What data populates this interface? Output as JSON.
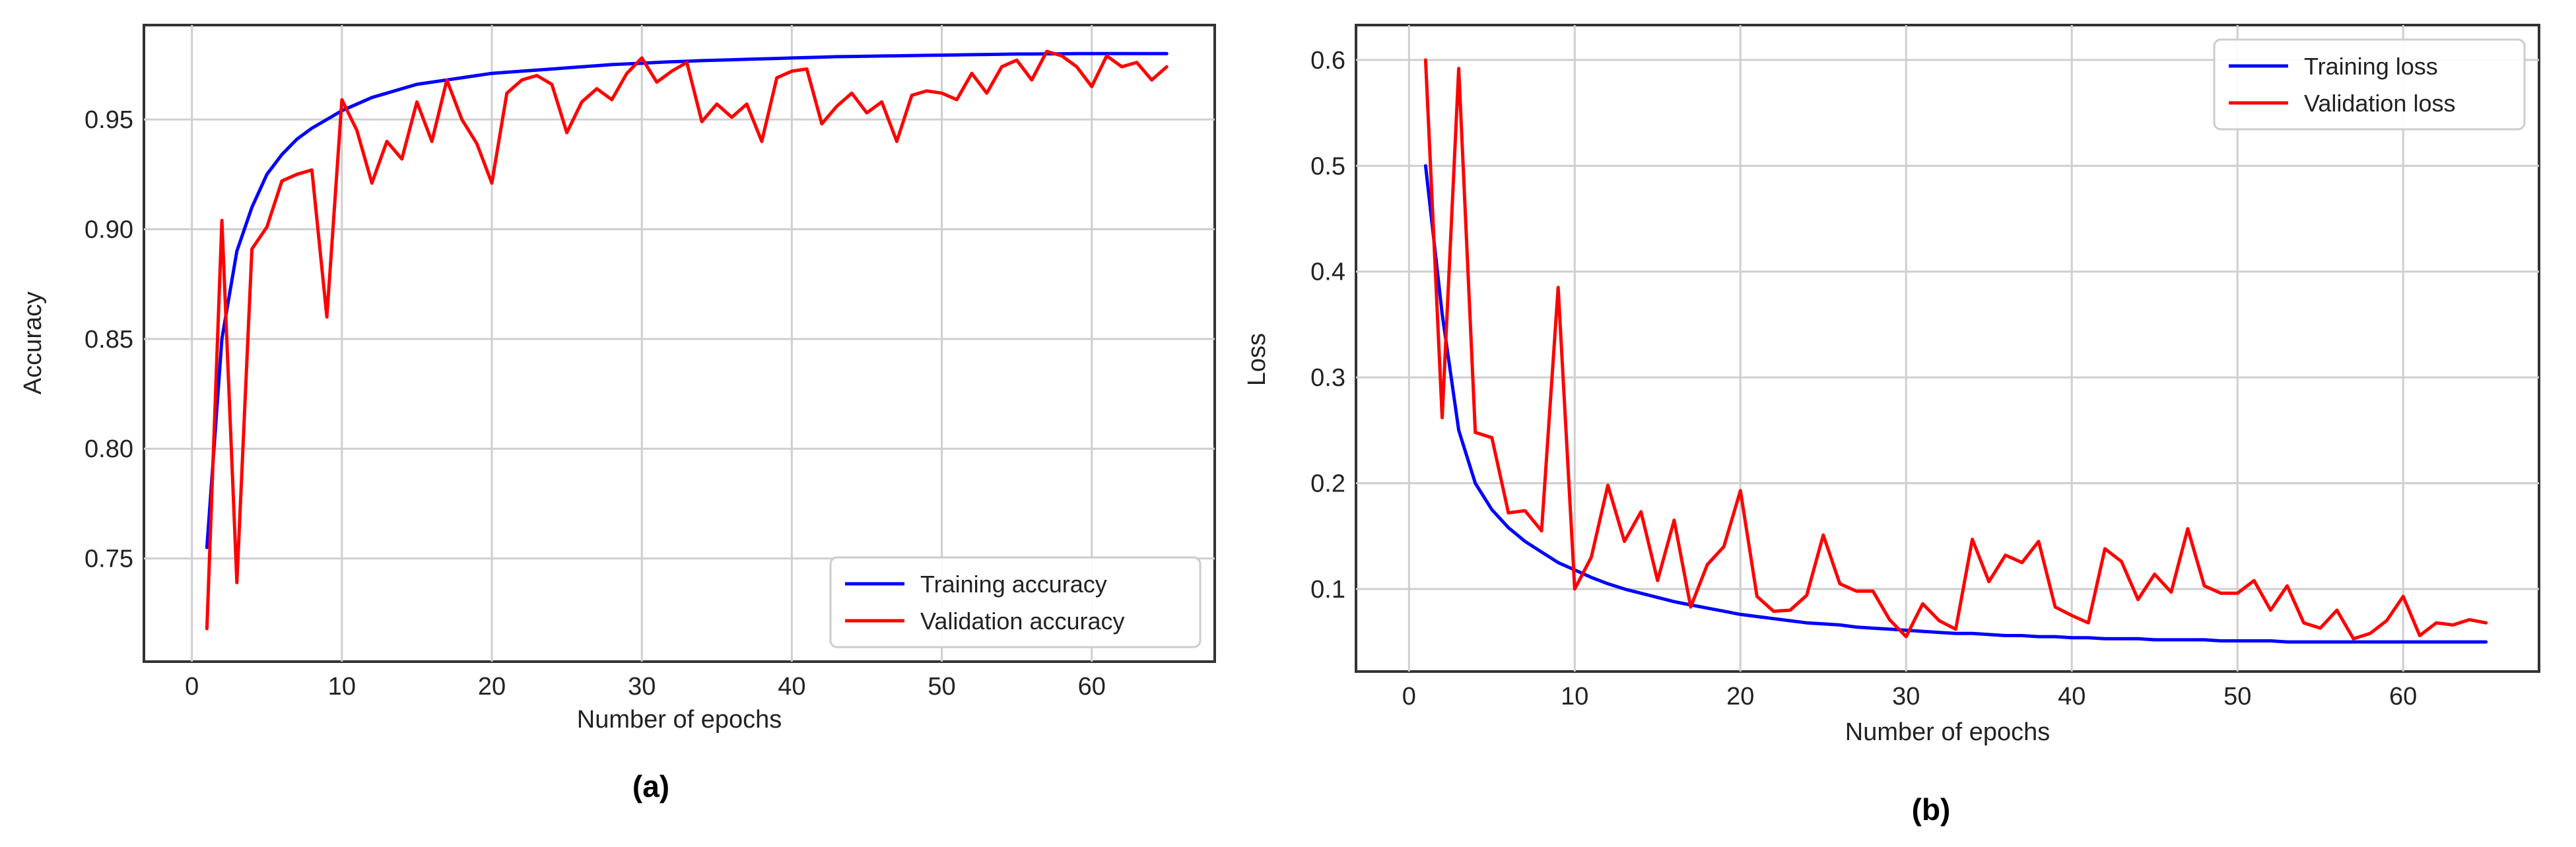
{
  "colors": {
    "training": "#0000ff",
    "validation": "#ff0000",
    "grid": "#cfcfcf",
    "frame": "#333333"
  },
  "chart_data": [
    {
      "type": "line",
      "panel_label": "(a)",
      "title": "",
      "xlabel": "Number of epochs",
      "ylabel": "Accuracy",
      "xlim": [
        -3.2,
        68.2
      ],
      "ylim": [
        0.703,
        0.993
      ],
      "xticks": [
        0,
        10,
        20,
        30,
        40,
        50,
        60
      ],
      "yticks": [
        0.75,
        0.8,
        0.85,
        0.9,
        0.95
      ],
      "xtick_labels": [
        "0",
        "10",
        "20",
        "30",
        "40",
        "50",
        "60"
      ],
      "ytick_labels": [
        "0.75",
        "0.80",
        "0.85",
        "0.90",
        "0.95"
      ],
      "grid": true,
      "legend_position": "lower-right",
      "x": [
        1,
        2,
        3,
        4,
        5,
        6,
        7,
        8,
        9,
        10,
        11,
        12,
        13,
        14,
        15,
        16,
        17,
        18,
        19,
        20,
        21,
        22,
        23,
        24,
        25,
        26,
        27,
        28,
        29,
        30,
        31,
        32,
        33,
        34,
        35,
        36,
        37,
        38,
        39,
        40,
        41,
        42,
        43,
        44,
        45,
        46,
        47,
        48,
        49,
        50,
        51,
        52,
        53,
        54,
        55,
        56,
        57,
        58,
        59,
        60,
        61,
        62,
        63,
        64,
        65
      ],
      "series": [
        {
          "name": "Training accuracy",
          "color_key": "training",
          "values": [
            0.755,
            0.85,
            0.89,
            0.91,
            0.925,
            0.934,
            0.941,
            0.946,
            0.95,
            0.954,
            0.957,
            0.96,
            0.962,
            0.964,
            0.966,
            0.967,
            0.968,
            0.969,
            0.97,
            0.971,
            0.9715,
            0.972,
            0.9725,
            0.973,
            0.9735,
            0.974,
            0.9745,
            0.975,
            0.9753,
            0.9756,
            0.976,
            0.9763,
            0.9765,
            0.9768,
            0.977,
            0.9772,
            0.9774,
            0.9776,
            0.9778,
            0.978,
            0.9782,
            0.9784,
            0.9786,
            0.9787,
            0.9788,
            0.9789,
            0.979,
            0.9791,
            0.9792,
            0.9793,
            0.9794,
            0.9795,
            0.9796,
            0.9797,
            0.9798,
            0.9798,
            0.9799,
            0.9799,
            0.98,
            0.98,
            0.98,
            0.98,
            0.98,
            0.98,
            0.98
          ]
        },
        {
          "name": "Validation accuracy",
          "color_key": "validation",
          "values": [
            0.718,
            0.904,
            0.739,
            0.891,
            0.901,
            0.922,
            0.925,
            0.927,
            0.86,
            0.959,
            0.945,
            0.921,
            0.94,
            0.932,
            0.958,
            0.94,
            0.968,
            0.95,
            0.939,
            0.921,
            0.962,
            0.968,
            0.97,
            0.966,
            0.944,
            0.958,
            0.964,
            0.959,
            0.971,
            0.978,
            0.967,
            0.972,
            0.976,
            0.949,
            0.957,
            0.951,
            0.957,
            0.94,
            0.969,
            0.972,
            0.973,
            0.948,
            0.956,
            0.962,
            0.953,
            0.958,
            0.94,
            0.961,
            0.963,
            0.962,
            0.959,
            0.971,
            0.962,
            0.974,
            0.977,
            0.968,
            0.981,
            0.979,
            0.974,
            0.965,
            0.979,
            0.974,
            0.976,
            0.968,
            0.974
          ]
        }
      ]
    },
    {
      "type": "line",
      "panel_label": "(b)",
      "title": "",
      "xlabel": "Number of epochs",
      "ylabel": "Loss",
      "xlim": [
        -3.2,
        68.2
      ],
      "ylim": [
        0.022,
        0.633
      ],
      "xticks": [
        0,
        10,
        20,
        30,
        40,
        50,
        60
      ],
      "yticks": [
        0.1,
        0.2,
        0.3,
        0.4,
        0.5,
        0.6
      ],
      "xtick_labels": [
        "0",
        "10",
        "20",
        "30",
        "40",
        "50",
        "60"
      ],
      "ytick_labels": [
        "0.1",
        "0.2",
        "0.3",
        "0.4",
        "0.5",
        "0.6"
      ],
      "grid": true,
      "legend_position": "upper-right",
      "x": [
        1,
        2,
        3,
        4,
        5,
        6,
        7,
        8,
        9,
        10,
        11,
        12,
        13,
        14,
        15,
        16,
        17,
        18,
        19,
        20,
        21,
        22,
        23,
        24,
        25,
        26,
        27,
        28,
        29,
        30,
        31,
        32,
        33,
        34,
        35,
        36,
        37,
        38,
        39,
        40,
        41,
        42,
        43,
        44,
        45,
        46,
        47,
        48,
        49,
        50,
        51,
        52,
        53,
        54,
        55,
        56,
        57,
        58,
        59,
        60,
        61,
        62,
        63,
        64,
        65
      ],
      "series": [
        {
          "name": "Training loss",
          "color_key": "training",
          "values": [
            0.5,
            0.36,
            0.25,
            0.2,
            0.175,
            0.158,
            0.145,
            0.135,
            0.125,
            0.118,
            0.111,
            0.105,
            0.1,
            0.096,
            0.092,
            0.088,
            0.085,
            0.082,
            0.079,
            0.076,
            0.074,
            0.072,
            0.07,
            0.068,
            0.067,
            0.066,
            0.064,
            0.063,
            0.062,
            0.061,
            0.06,
            0.059,
            0.058,
            0.058,
            0.057,
            0.056,
            0.056,
            0.055,
            0.055,
            0.054,
            0.054,
            0.053,
            0.053,
            0.053,
            0.052,
            0.052,
            0.052,
            0.052,
            0.051,
            0.051,
            0.051,
            0.051,
            0.05,
            0.05,
            0.05,
            0.05,
            0.05,
            0.05,
            0.05,
            0.05,
            0.05,
            0.05,
            0.05,
            0.05,
            0.05
          ]
        },
        {
          "name": "Validation loss",
          "color_key": "validation",
          "values": [
            0.6,
            0.262,
            0.592,
            0.248,
            0.243,
            0.172,
            0.174,
            0.155,
            0.385,
            0.1,
            0.13,
            0.198,
            0.145,
            0.173,
            0.108,
            0.165,
            0.083,
            0.123,
            0.14,
            0.193,
            0.093,
            0.079,
            0.08,
            0.094,
            0.151,
            0.105,
            0.098,
            0.098,
            0.071,
            0.055,
            0.086,
            0.07,
            0.062,
            0.147,
            0.107,
            0.132,
            0.125,
            0.145,
            0.083,
            0.075,
            0.068,
            0.138,
            0.126,
            0.09,
            0.114,
            0.097,
            0.157,
            0.103,
            0.096,
            0.096,
            0.108,
            0.08,
            0.103,
            0.068,
            0.063,
            0.08,
            0.053,
            0.058,
            0.07,
            0.093,
            0.056,
            0.068,
            0.066,
            0.071,
            0.068
          ]
        }
      ]
    }
  ]
}
